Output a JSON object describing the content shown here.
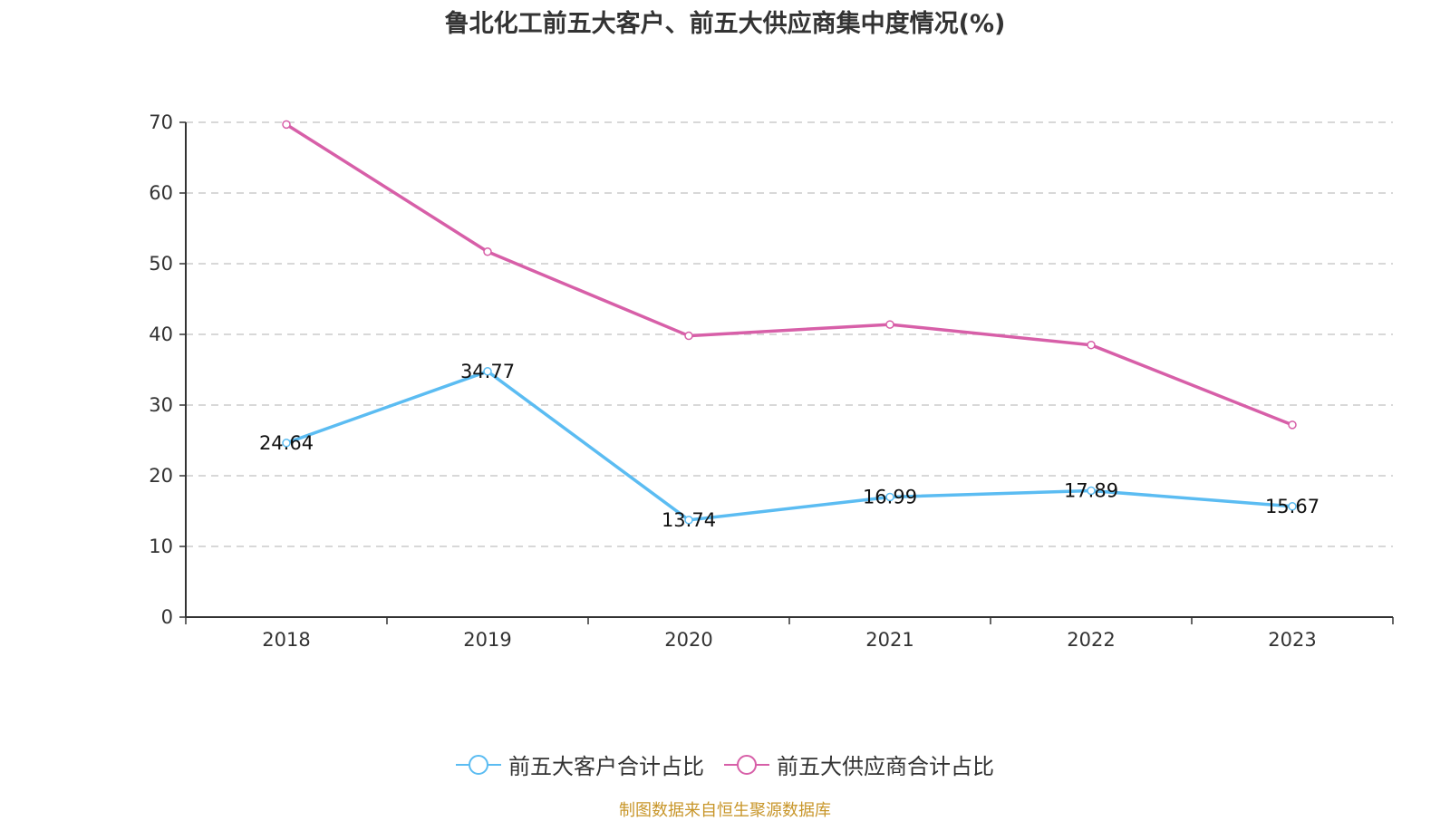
{
  "chart_data": {
    "type": "line",
    "title": "鲁北化工前五大客户、前五大供应商集中度情况(%)",
    "xlabel": "",
    "ylabel": "",
    "categories": [
      "2018",
      "2019",
      "2020",
      "2021",
      "2022",
      "2023"
    ],
    "ylim": [
      0,
      70
    ],
    "yticks": [
      0,
      10,
      20,
      30,
      40,
      50,
      60,
      70
    ],
    "grid": true,
    "legend_position": "bottom",
    "series": [
      {
        "name": "前五大客户合计占比",
        "color": "#5bbcf2",
        "values": [
          24.64,
          34.77,
          13.74,
          16.99,
          17.89,
          15.67
        ],
        "labels": [
          "24.64",
          "34.77",
          "13.74",
          "16.99",
          "17.89",
          "15.67"
        ],
        "show_labels": true
      },
      {
        "name": "前五大供应商合计占比",
        "color": "#d75fa8",
        "values": [
          69.7,
          51.7,
          39.8,
          41.4,
          38.5,
          27.2
        ],
        "show_labels": false
      }
    ],
    "footnote": "制图数据来自恒生聚源数据库"
  }
}
